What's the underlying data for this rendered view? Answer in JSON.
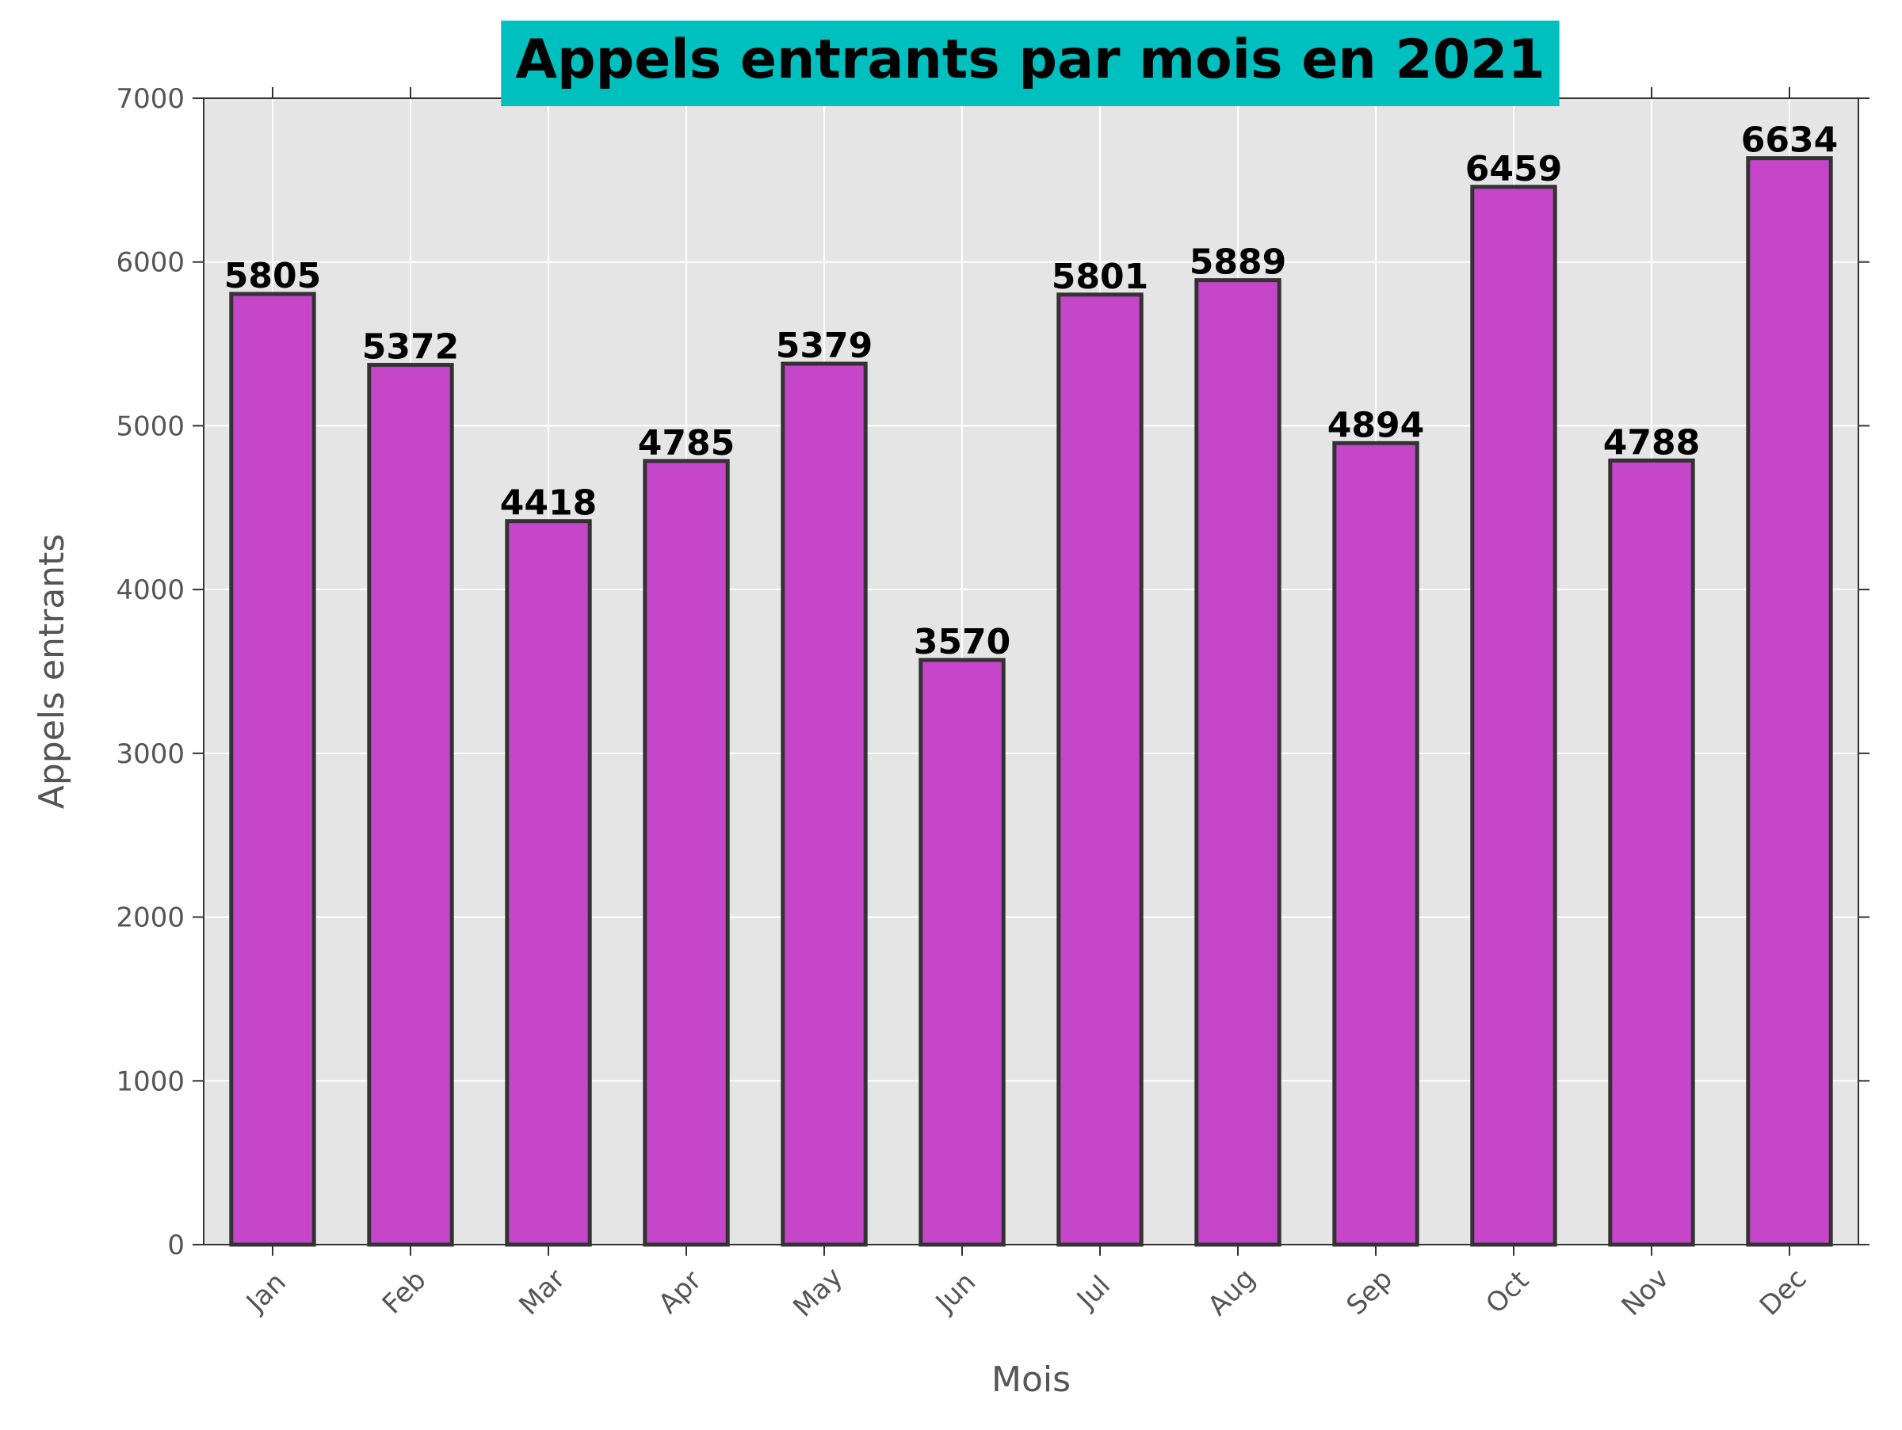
{
  "chart_data": {
    "type": "bar",
    "title": "Appels entrants par mois en 2021",
    "xlabel": "Mois",
    "ylabel": "Appels entrants",
    "categories": [
      "Jan",
      "Feb",
      "Mar",
      "Apr",
      "May",
      "Jun",
      "Jul",
      "Aug",
      "Sep",
      "Oct",
      "Nov",
      "Dec"
    ],
    "values": [
      5805,
      5372,
      4418,
      4785,
      5379,
      3570,
      5801,
      5889,
      4894,
      6459,
      4788,
      6634
    ],
    "ylim": [
      0,
      7000
    ],
    "yticks": [
      0,
      1000,
      2000,
      3000,
      4000,
      5000,
      6000,
      7000
    ],
    "grid": true,
    "colors": {
      "bar_fill": "#c440c8",
      "bar_edge": "#333333",
      "plot_background": "#e5e5e5",
      "title_background": "#00bfbf",
      "grid": "#ffffff"
    }
  }
}
